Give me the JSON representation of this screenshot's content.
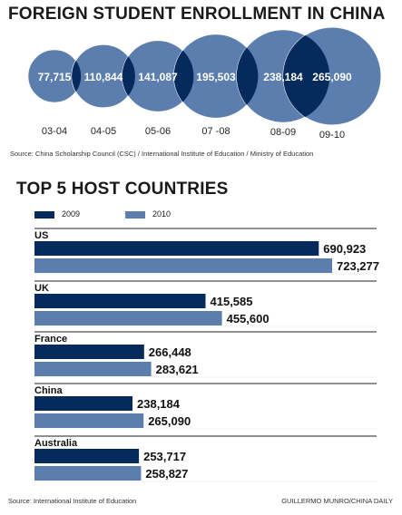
{
  "header": {
    "title": "FOREIGN STUDENT ENROLLMENT IN CHINA",
    "source": "Source: China Scholarship Council (CSC) / International Institute of Education / Ministry of Education"
  },
  "section2": {
    "title": "TOP 5 HOST COUNTRIES",
    "source": "Source: International Institute of Education",
    "credit": "GUILLERMO MUNRO/CHINA DAILY"
  },
  "colors": {
    "dark": "#062a5c",
    "light": "#5b7eae",
    "rule": "#222222"
  },
  "chart_data": [
    {
      "type": "bubble",
      "title": "FOREIGN STUDENT ENROLLMENT IN CHINA",
      "categories": [
        "03-04",
        "04-05",
        "05-06",
        "07 -08",
        "08-09",
        "09-10"
      ],
      "values": [
        77715,
        110844,
        141087,
        195503,
        238184,
        265090
      ],
      "labels": [
        "77,715",
        "110,844",
        "141,087",
        "195,503",
        "238,184",
        "265,090"
      ]
    },
    {
      "type": "bar",
      "orientation": "horizontal",
      "title": "TOP 5 HOST COUNTRIES",
      "categories": [
        "US",
        "UK",
        "France",
        "China",
        "Australia"
      ],
      "series": [
        {
          "name": "2009",
          "values": [
            690923,
            415585,
            266448,
            238184,
            253717
          ],
          "labels": [
            "690,923",
            "415,585",
            "266,448",
            "238,184",
            "253,717"
          ]
        },
        {
          "name": "2010",
          "values": [
            723277,
            455600,
            283621,
            265090,
            258827
          ],
          "labels": [
            "723,277",
            "455,600",
            "283,621",
            "265,090",
            "258,827"
          ]
        }
      ]
    }
  ]
}
